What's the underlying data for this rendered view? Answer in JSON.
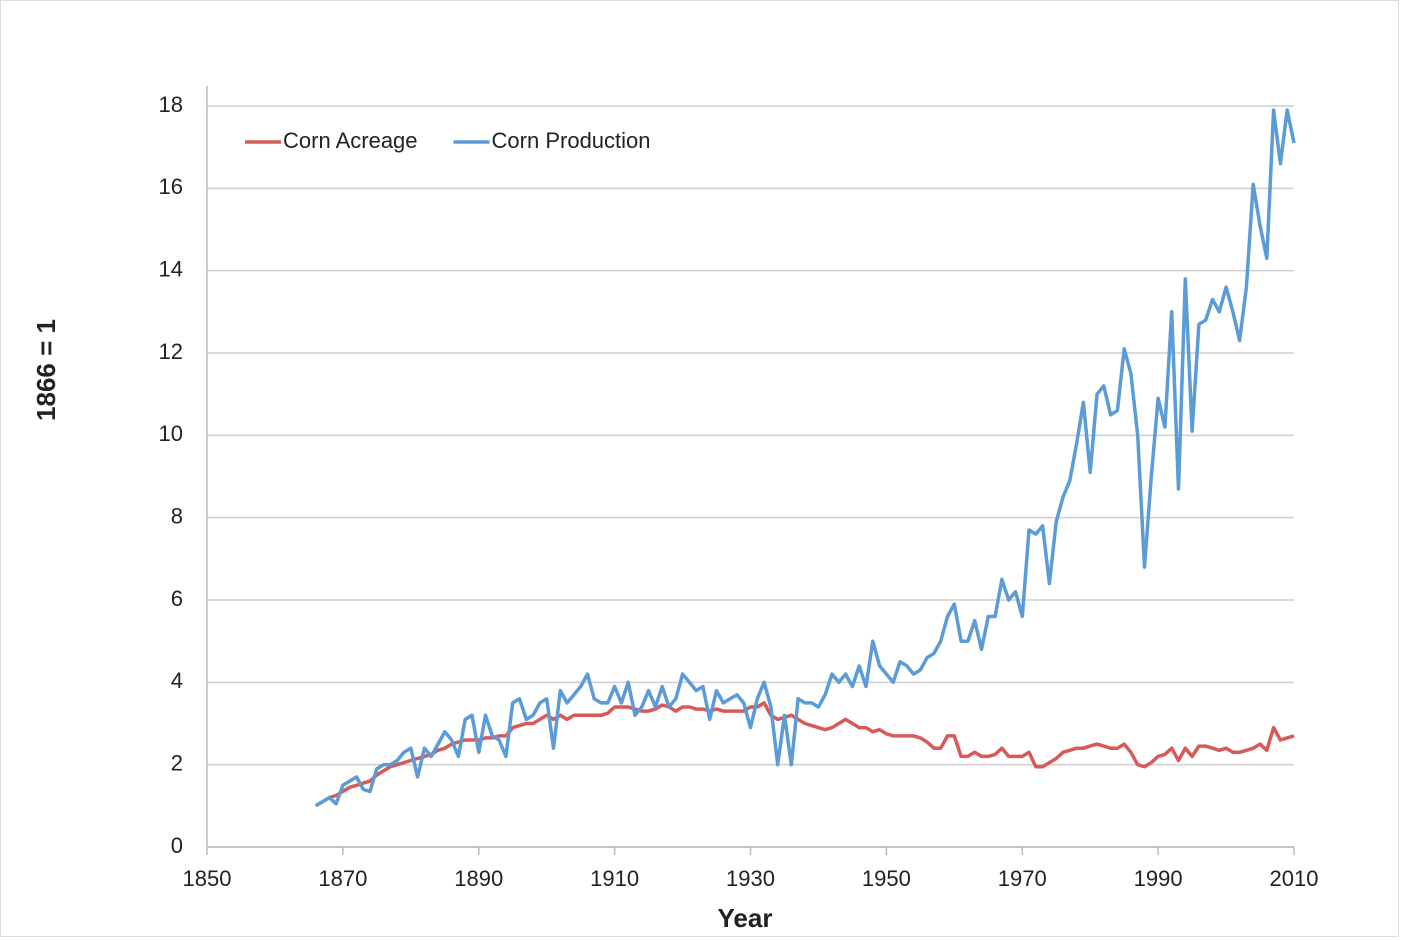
{
  "chart_data": {
    "type": "line",
    "x_label": "Year",
    "y_label": "1866 = 1",
    "x": [
      1866,
      1867,
      1868,
      1869,
      1870,
      1871,
      1872,
      1873,
      1874,
      1875,
      1876,
      1877,
      1878,
      1879,
      1880,
      1881,
      1882,
      1883,
      1884,
      1885,
      1886,
      1887,
      1888,
      1889,
      1890,
      1891,
      1892,
      1893,
      1894,
      1895,
      1896,
      1897,
      1898,
      1899,
      1900,
      1901,
      1902,
      1903,
      1904,
      1905,
      1906,
      1907,
      1908,
      1909,
      1910,
      1911,
      1912,
      1913,
      1914,
      1915,
      1916,
      1917,
      1918,
      1919,
      1920,
      1921,
      1922,
      1923,
      1924,
      1925,
      1926,
      1927,
      1928,
      1929,
      1930,
      1931,
      1932,
      1933,
      1934,
      1935,
      1936,
      1937,
      1938,
      1939,
      1940,
      1941,
      1942,
      1943,
      1944,
      1945,
      1946,
      1947,
      1948,
      1949,
      1950,
      1951,
      1952,
      1953,
      1954,
      1955,
      1956,
      1957,
      1958,
      1959,
      1960,
      1961,
      1962,
      1963,
      1964,
      1965,
      1966,
      1967,
      1968,
      1969,
      1970,
      1971,
      1972,
      1973,
      1974,
      1975,
      1976,
      1977,
      1978,
      1979,
      1980,
      1981,
      1982,
      1983,
      1984,
      1985,
      1986,
      1987,
      1988,
      1989,
      1990,
      1991,
      1992,
      1993,
      1994,
      1995,
      1996,
      1997,
      1998,
      1999,
      2000,
      2001,
      2002,
      2003,
      2004,
      2005,
      2006,
      2007,
      2008,
      2009,
      2010
    ],
    "series": [
      {
        "name": "Corn Acreage",
        "color": "#d65a57",
        "values": [
          1.0,
          1.1,
          1.2,
          1.25,
          1.35,
          1.45,
          1.5,
          1.55,
          1.6,
          1.75,
          1.85,
          1.95,
          2.0,
          2.05,
          2.1,
          2.15,
          2.2,
          2.25,
          2.35,
          2.4,
          2.5,
          2.55,
          2.6,
          2.6,
          2.6,
          2.65,
          2.65,
          2.7,
          2.7,
          2.9,
          2.95,
          3.0,
          3.0,
          3.1,
          3.2,
          3.1,
          3.2,
          3.1,
          3.2,
          3.2,
          3.2,
          3.2,
          3.2,
          3.25,
          3.4,
          3.4,
          3.4,
          3.35,
          3.3,
          3.3,
          3.35,
          3.45,
          3.4,
          3.3,
          3.4,
          3.4,
          3.35,
          3.35,
          3.3,
          3.35,
          3.3,
          3.3,
          3.3,
          3.3,
          3.4,
          3.4,
          3.5,
          3.2,
          3.1,
          3.15,
          3.2,
          3.1,
          3.0,
          2.95,
          2.9,
          2.85,
          2.9,
          3.0,
          3.1,
          3.0,
          2.9,
          2.9,
          2.8,
          2.85,
          2.75,
          2.7,
          2.7,
          2.7,
          2.7,
          2.65,
          2.55,
          2.4,
          2.4,
          2.7,
          2.7,
          2.2,
          2.2,
          2.3,
          2.2,
          2.2,
          2.25,
          2.4,
          2.2,
          2.2,
          2.2,
          2.3,
          1.95,
          1.95,
          2.05,
          2.15,
          2.3,
          2.35,
          2.4,
          2.4,
          2.45,
          2.5,
          2.45,
          2.4,
          2.4,
          2.5,
          2.3,
          2.0,
          1.95,
          2.05,
          2.2,
          2.25,
          2.4,
          2.1,
          2.4,
          2.2,
          2.45,
          2.45,
          2.4,
          2.35,
          2.4,
          2.3,
          2.3,
          2.35,
          2.4,
          2.5,
          2.35,
          2.9,
          2.6,
          2.65,
          2.7
        ]
      },
      {
        "name": "Corn Production",
        "color": "#5b9bd6",
        "values": [
          1.0,
          1.1,
          1.2,
          1.05,
          1.5,
          1.6,
          1.7,
          1.4,
          1.35,
          1.9,
          2.0,
          2.0,
          2.1,
          2.3,
          2.4,
          1.7,
          2.4,
          2.2,
          2.5,
          2.8,
          2.6,
          2.2,
          3.1,
          3.2,
          2.3,
          3.2,
          2.7,
          2.6,
          2.2,
          3.5,
          3.6,
          3.1,
          3.2,
          3.5,
          3.6,
          2.4,
          3.8,
          3.5,
          3.7,
          3.9,
          4.2,
          3.6,
          3.5,
          3.5,
          3.9,
          3.5,
          4.0,
          3.2,
          3.4,
          3.8,
          3.4,
          3.9,
          3.4,
          3.6,
          4.2,
          4.0,
          3.8,
          3.9,
          3.1,
          3.8,
          3.5,
          3.6,
          3.7,
          3.5,
          2.9,
          3.6,
          4.0,
          3.4,
          2.0,
          3.2,
          2.0,
          3.6,
          3.5,
          3.5,
          3.4,
          3.7,
          4.2,
          4.0,
          4.2,
          3.9,
          4.4,
          3.9,
          5.0,
          4.4,
          4.2,
          4.0,
          4.5,
          4.4,
          4.2,
          4.3,
          4.6,
          4.7,
          5.0,
          5.6,
          5.9,
          5.0,
          5.0,
          5.5,
          4.8,
          5.6,
          5.6,
          6.5,
          6.0,
          6.2,
          5.6,
          7.7,
          7.6,
          7.8,
          6.4,
          7.9,
          8.5,
          8.9,
          9.8,
          10.8,
          9.1,
          11.0,
          11.2,
          10.5,
          10.6,
          12.1,
          11.5,
          10.0,
          6.8,
          9.0,
          10.9,
          10.2,
          13.0,
          8.7,
          13.8,
          10.1,
          12.7,
          12.8,
          13.3,
          13.0,
          13.6,
          13.0,
          12.3,
          13.6,
          16.1,
          15.1,
          14.3,
          17.9,
          16.6,
          17.9,
          17.1
        ]
      }
    ],
    "xlim": [
      1850,
      2010
    ],
    "xticks": [
      1850,
      1870,
      1890,
      1910,
      1930,
      1950,
      1970,
      1990,
      2010
    ],
    "ylim": [
      0,
      18
    ],
    "yticks": [
      0,
      2,
      4,
      6,
      8,
      10,
      12,
      14,
      16,
      18
    ],
    "grid": true,
    "legend": "upper left"
  }
}
